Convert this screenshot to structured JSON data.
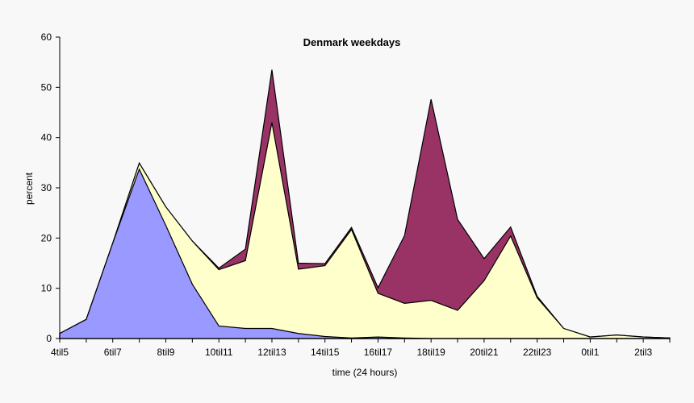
{
  "chart_data": {
    "type": "area",
    "stacked": true,
    "title": "Denmark weekdays",
    "xlabel": "time (24 hours)",
    "ylabel": "percent",
    "ylim": [
      0,
      60
    ],
    "y_ticks": [
      0,
      10,
      20,
      30,
      40,
      50,
      60
    ],
    "categories": [
      "4til5",
      "5til6",
      "6til7",
      "7til8",
      "8til9",
      "9til10",
      "10til11",
      "11til12",
      "12til13",
      "13til14",
      "14til15",
      "15til16",
      "16til17",
      "17til18",
      "18til19",
      "19til20",
      "20til21",
      "21til22",
      "22til23",
      "23til0",
      "0til1",
      "1til2",
      "2til3",
      "3til4"
    ],
    "x_tick_labels": [
      "4til5",
      "6til7",
      "8til9",
      "10til11",
      "12til13",
      "14til15",
      "16til17",
      "18til19",
      "20til21",
      "22til23",
      "0til1",
      "2til3"
    ],
    "series": [
      {
        "color": "#9999ff",
        "values": [
          1,
          3.8,
          19,
          33.7,
          22.5,
          10.8,
          2.5,
          2,
          2,
          1,
          0.4,
          0.1,
          0.3,
          0.1,
          0,
          0,
          0,
          0,
          0,
          0,
          0,
          0,
          0,
          0
        ]
      },
      {
        "color": "#ffffcc",
        "values": [
          0,
          0,
          0,
          1.2,
          3.7,
          8.6,
          11.2,
          13.5,
          41,
          12.8,
          14.1,
          21.6,
          8.7,
          6.9,
          7.6,
          5.6,
          11.5,
          20.4,
          8.1,
          2,
          0.3,
          0.7,
          0.3,
          0.1
        ]
      },
      {
        "color": "#993366",
        "values": [
          0,
          0,
          0,
          0,
          0,
          0,
          0.3,
          2.3,
          10.5,
          1.2,
          0.4,
          0.4,
          1.1,
          13.5,
          40,
          18.1,
          4.4,
          1.8,
          0.3,
          0,
          0,
          0,
          0,
          0
        ]
      }
    ],
    "grid": false,
    "legend": "none"
  }
}
